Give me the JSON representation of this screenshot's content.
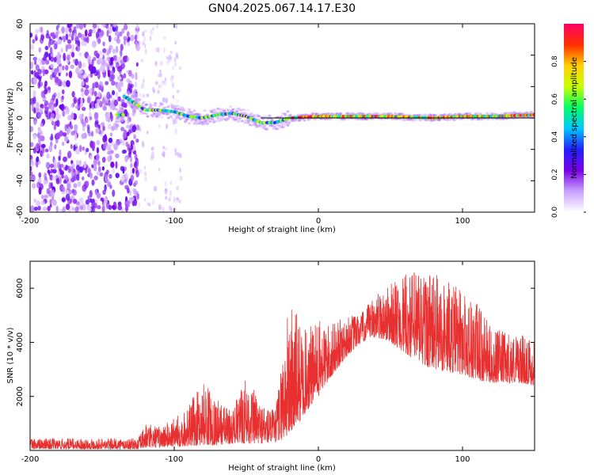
{
  "title": "GN04.2025.067.14.17.E30",
  "chart_data": [
    {
      "type": "heatmap",
      "xlabel": "Height of straight line (km)",
      "ylabel": "Frequency (Hz)",
      "xlim": [
        -200,
        150
      ],
      "ylim": [
        -60,
        60
      ],
      "x_ticks": [
        -200,
        -100,
        0,
        100
      ],
      "y_ticks": [
        -60,
        -40,
        -20,
        0,
        20,
        40,
        60
      ],
      "reference_line_y": 0,
      "colorbar": {
        "label": "Normalized spectral amplitude",
        "range": [
          0,
          1
        ],
        "ticks": [
          "0.0",
          "0.2",
          "0.4",
          "0.6",
          "0.8"
        ],
        "colors": [
          "#ffffff",
          "#c8a0ff",
          "#7a00e6",
          "#2222ff",
          "#00c8ff",
          "#00ff66",
          "#c8ff00",
          "#ffd000",
          "#ff3000",
          "#ff0066"
        ]
      },
      "signal_track": [
        {
          "x": -135,
          "y": 14
        },
        {
          "x": -120,
          "y": 5
        },
        {
          "x": -110,
          "y": 5
        },
        {
          "x": -100,
          "y": 4
        },
        {
          "x": -90,
          "y": 1
        },
        {
          "x": -80,
          "y": 0
        },
        {
          "x": -70,
          "y": 2
        },
        {
          "x": -60,
          "y": 3
        },
        {
          "x": -50,
          "y": 1
        },
        {
          "x": -40,
          "y": -3
        },
        {
          "x": -30,
          "y": -3
        },
        {
          "x": -20,
          "y": 0
        },
        {
          "x": 0,
          "y": 1
        },
        {
          "x": 20,
          "y": 1
        },
        {
          "x": 50,
          "y": 1
        },
        {
          "x": 80,
          "y": 0
        },
        {
          "x": 100,
          "y": 1
        },
        {
          "x": 120,
          "y": 1
        },
        {
          "x": 150,
          "y": 2
        }
      ]
    },
    {
      "type": "line",
      "xlabel": "Height of straight line (km)",
      "ylabel": "SNR (10 * v/v)",
      "xlim": [
        -200,
        150
      ],
      "ylim": [
        0,
        7000
      ],
      "x_ticks": [
        -200,
        -100,
        0,
        100
      ],
      "y_ticks": [
        2000,
        4000,
        6000
      ],
      "series": [
        {
          "color": "#e83030",
          "envelope_x": [
            -200,
            -150,
            -125,
            -120,
            -110,
            -100,
            -90,
            -80,
            -70,
            -60,
            -50,
            -40,
            -30,
            -20,
            -10,
            0,
            10,
            20,
            30,
            40,
            50,
            60,
            70,
            80,
            90,
            100,
            110,
            120,
            130,
            140,
            150
          ],
          "envelope_lo": [
            50,
            50,
            50,
            100,
            100,
            150,
            150,
            200,
            200,
            250,
            250,
            250,
            300,
            500,
            1300,
            2000,
            2800,
            3500,
            4000,
            4200,
            4000,
            3600,
            3200,
            3000,
            2900,
            2800,
            2600,
            2500,
            2500,
            2500,
            2400
          ],
          "envelope_hi": [
            450,
            450,
            450,
            1000,
            900,
            1200,
            1700,
            2600,
            1900,
            1500,
            2800,
            1800,
            1500,
            5700,
            4500,
            4800,
            4700,
            5000,
            5100,
            5800,
            6200,
            6500,
            6900,
            6600,
            6300,
            6000,
            5500,
            4500,
            4400,
            4300,
            4100
          ]
        }
      ]
    }
  ]
}
